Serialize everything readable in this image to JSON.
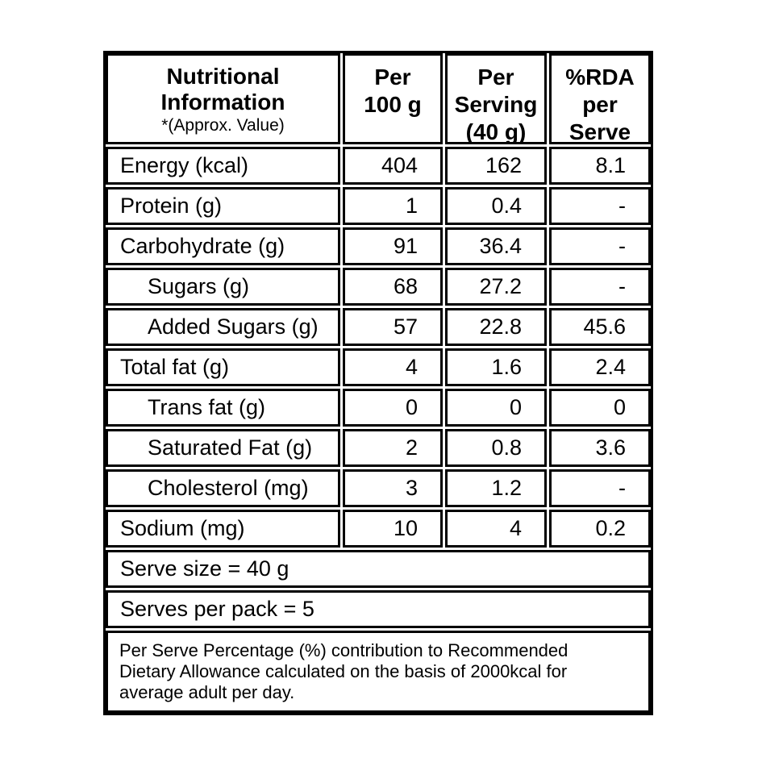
{
  "table": {
    "header": {
      "title": "Nutritional Information",
      "subtitle": "*(Approx. Value)",
      "columns": [
        {
          "lines": [
            "Per",
            "100 g"
          ]
        },
        {
          "lines": [
            "Per",
            "Serving",
            "(40 g)"
          ]
        },
        {
          "lines": [
            "%RDA",
            "per",
            "Serve"
          ]
        }
      ]
    },
    "rows": [
      {
        "label": "Energy (kcal)",
        "per_100g": "404",
        "per_serving": "162",
        "rda_per_serve": "8.1"
      },
      {
        "label": "Protein (g)",
        "per_100g": "1",
        "per_serving": "0.4",
        "rda_per_serve": "-"
      },
      {
        "label": "Carbohydrate (g)",
        "per_100g": "91",
        "per_serving": "36.4",
        "rda_per_serve": "-"
      },
      {
        "label": "Sugars (g)",
        "per_100g": "68",
        "per_serving": "27.2",
        "rda_per_serve": "-"
      },
      {
        "label": "Added Sugars (g)",
        "per_100g": "57",
        "per_serving": "22.8",
        "rda_per_serve": "45.6"
      },
      {
        "label": "Total fat (g)",
        "per_100g": "4",
        "per_serving": "1.6",
        "rda_per_serve": "2.4"
      },
      {
        "label": "Trans fat (g)",
        "per_100g": "0",
        "per_serving": "0",
        "rda_per_serve": "0"
      },
      {
        "label": "Saturated Fat (g)",
        "per_100g": "2",
        "per_serving": "0.8",
        "rda_per_serve": "3.6"
      },
      {
        "label": "Cholesterol (mg)",
        "per_100g": "3",
        "per_serving": "1.2",
        "rda_per_serve": "-"
      },
      {
        "label": "Sodium (mg)",
        "per_100g": "10",
        "per_serving": "4",
        "rda_per_serve": "0.2"
      }
    ],
    "serve_size": "Serve size = 40 g",
    "serves_per_pack": "Serves per pack = 5",
    "footnote": "Per Serve Percentage (%) contribution to Recommended Dietary Allowance calculated on the basis of 2000kcal for average adult per day.",
    "colors": {
      "border": "#000000",
      "background": "#ffffff",
      "text": "#000000"
    }
  }
}
